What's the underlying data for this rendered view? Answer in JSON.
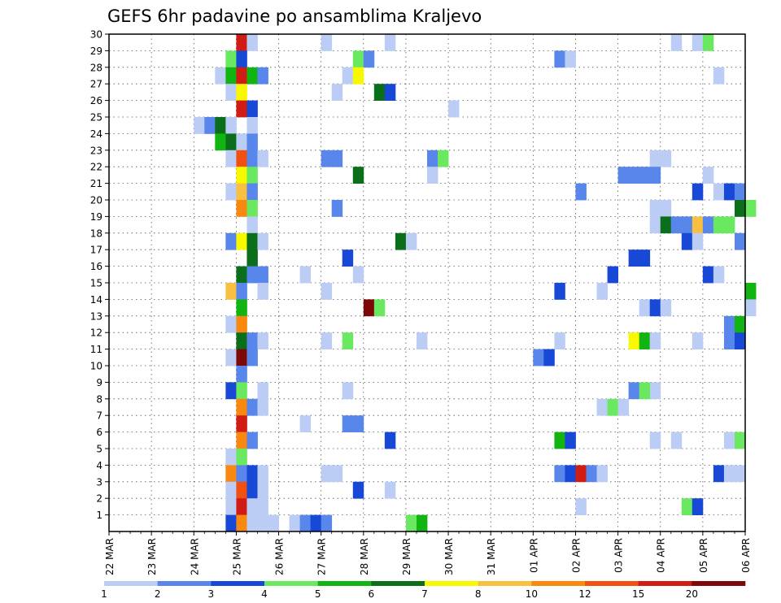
{
  "chart_data": {
    "type": "heatmap",
    "title": "GEFS 6hr padavine po ansamblima Kraljevo",
    "x_tick_labels": [
      "22 MAR",
      "23 MAR",
      "24 MAR",
      "25 MAR",
      "26 MAR",
      "27 MAR",
      "28 MAR",
      "29 MAR",
      "30 MAR",
      "31 MAR",
      "01 APR",
      "02 APR",
      "03 APR",
      "04 APR",
      "05 APR",
      "06 APR"
    ],
    "y_tick_labels": [
      "1",
      "2",
      "3",
      "4",
      "5",
      "6",
      "7",
      "8",
      "9",
      "10",
      "11",
      "12",
      "13",
      "14",
      "15",
      "16",
      "17",
      "18",
      "19",
      "20",
      "21",
      "22",
      "23",
      "24",
      "25",
      "26",
      "27",
      "28",
      "29",
      "30"
    ],
    "ylim": [
      0,
      30
    ],
    "steps_per_day": 4,
    "grid": true,
    "legend": {
      "placement": "bottom",
      "bin_labels": [
        "1",
        "2",
        "3",
        "4",
        "5",
        "6",
        "7",
        "8",
        "10",
        "12",
        "15",
        "20"
      ],
      "colors": [
        "#bccdf5",
        "#5886ea",
        "#1848d6",
        "#6ae860",
        "#12b412",
        "#0a6e1a",
        "#f8f800",
        "#f8c040",
        "#f88810",
        "#f05010",
        "#d01c14",
        "#7c0808"
      ]
    },
    "cells": [
      [
        30,
        12,
        11
      ],
      [
        30,
        13,
        1
      ],
      [
        30,
        20,
        1
      ],
      [
        30,
        26,
        1
      ],
      [
        30,
        53,
        1
      ],
      [
        30,
        55,
        1
      ],
      [
        30,
        56,
        4
      ],
      [
        29,
        11,
        4
      ],
      [
        29,
        12,
        3
      ],
      [
        29,
        23,
        4
      ],
      [
        29,
        24,
        2
      ],
      [
        29,
        42,
        2
      ],
      [
        29,
        43,
        1
      ],
      [
        28,
        10,
        1
      ],
      [
        28,
        11,
        5
      ],
      [
        28,
        12,
        11
      ],
      [
        28,
        13,
        5
      ],
      [
        28,
        14,
        2
      ],
      [
        28,
        22,
        1
      ],
      [
        28,
        23,
        7
      ],
      [
        28,
        57,
        1
      ],
      [
        27,
        11,
        1
      ],
      [
        27,
        12,
        7
      ],
      [
        27,
        21,
        1
      ],
      [
        27,
        25,
        6
      ],
      [
        27,
        26,
        3
      ],
      [
        26,
        12,
        11
      ],
      [
        26,
        13,
        3
      ],
      [
        26,
        32,
        1
      ],
      [
        25,
        8,
        1
      ],
      [
        25,
        9,
        2
      ],
      [
        25,
        10,
        6
      ],
      [
        25,
        11,
        1
      ],
      [
        25,
        13,
        1
      ],
      [
        24,
        10,
        5
      ],
      [
        24,
        11,
        6
      ],
      [
        24,
        12,
        1
      ],
      [
        24,
        13,
        2
      ],
      [
        23,
        11,
        1
      ],
      [
        23,
        12,
        10
      ],
      [
        23,
        13,
        2
      ],
      [
        23,
        14,
        1
      ],
      [
        23,
        20,
        2
      ],
      [
        23,
        21,
        2
      ],
      [
        23,
        30,
        2
      ],
      [
        23,
        31,
        4
      ],
      [
        23,
        51,
        1
      ],
      [
        23,
        52,
        1
      ],
      [
        22,
        12,
        7
      ],
      [
        22,
        13,
        4
      ],
      [
        22,
        23,
        6
      ],
      [
        22,
        30,
        1
      ],
      [
        22,
        48,
        2
      ],
      [
        22,
        49,
        2
      ],
      [
        22,
        50,
        2
      ],
      [
        22,
        51,
        2
      ],
      [
        22,
        56,
        1
      ],
      [
        21,
        11,
        1
      ],
      [
        21,
        12,
        8
      ],
      [
        21,
        13,
        2
      ],
      [
        21,
        44,
        2
      ],
      [
        21,
        55,
        3
      ],
      [
        21,
        57,
        1
      ],
      [
        21,
        58,
        3
      ],
      [
        21,
        59,
        2
      ],
      [
        20,
        12,
        9
      ],
      [
        20,
        13,
        4
      ],
      [
        20,
        21,
        2
      ],
      [
        20,
        51,
        1
      ],
      [
        20,
        52,
        1
      ],
      [
        20,
        59,
        6
      ],
      [
        20,
        60,
        4
      ],
      [
        19,
        13,
        1
      ],
      [
        19,
        51,
        1
      ],
      [
        19,
        52,
        6
      ],
      [
        19,
        53,
        2
      ],
      [
        19,
        54,
        2
      ],
      [
        19,
        55,
        8
      ],
      [
        19,
        56,
        2
      ],
      [
        19,
        57,
        4
      ],
      [
        19,
        58,
        4
      ],
      [
        18,
        11,
        2
      ],
      [
        18,
        12,
        7
      ],
      [
        18,
        13,
        6
      ],
      [
        18,
        14,
        1
      ],
      [
        18,
        27,
        6
      ],
      [
        18,
        28,
        1
      ],
      [
        18,
        54,
        3
      ],
      [
        18,
        55,
        1
      ],
      [
        18,
        59,
        2
      ],
      [
        17,
        13,
        6
      ],
      [
        17,
        22,
        3
      ],
      [
        17,
        49,
        3
      ],
      [
        17,
        50,
        3
      ],
      [
        16,
        12,
        6
      ],
      [
        16,
        13,
        2
      ],
      [
        16,
        14,
        2
      ],
      [
        16,
        18,
        1
      ],
      [
        16,
        23,
        1
      ],
      [
        16,
        47,
        3
      ],
      [
        16,
        56,
        3
      ],
      [
        16,
        57,
        1
      ],
      [
        15,
        11,
        8
      ],
      [
        15,
        12,
        2
      ],
      [
        15,
        14,
        1
      ],
      [
        15,
        20,
        1
      ],
      [
        15,
        42,
        3
      ],
      [
        15,
        46,
        1
      ],
      [
        15,
        60,
        5
      ],
      [
        14,
        12,
        5
      ],
      [
        14,
        24,
        12
      ],
      [
        14,
        25,
        4
      ],
      [
        14,
        50,
        1
      ],
      [
        14,
        51,
        3
      ],
      [
        14,
        52,
        1
      ],
      [
        14,
        60,
        1
      ],
      [
        13,
        11,
        1
      ],
      [
        13,
        12,
        9
      ],
      [
        13,
        58,
        2
      ],
      [
        13,
        59,
        5
      ],
      [
        12,
        12,
        6
      ],
      [
        12,
        13,
        2
      ],
      [
        12,
        14,
        1
      ],
      [
        12,
        20,
        1
      ],
      [
        12,
        22,
        4
      ],
      [
        12,
        29,
        1
      ],
      [
        12,
        42,
        1
      ],
      [
        12,
        49,
        7
      ],
      [
        12,
        50,
        5
      ],
      [
        12,
        51,
        1
      ],
      [
        12,
        55,
        1
      ],
      [
        12,
        58,
        2
      ],
      [
        12,
        59,
        3
      ],
      [
        11,
        11,
        1
      ],
      [
        11,
        12,
        12
      ],
      [
        11,
        13,
        2
      ],
      [
        11,
        40,
        2
      ],
      [
        11,
        41,
        3
      ],
      [
        10,
        12,
        2
      ],
      [
        9,
        11,
        3
      ],
      [
        9,
        12,
        4
      ],
      [
        9,
        14,
        1
      ],
      [
        9,
        22,
        1
      ],
      [
        9,
        51,
        1
      ],
      [
        9,
        49,
        2
      ],
      [
        9,
        50,
        4
      ],
      [
        8,
        12,
        9
      ],
      [
        8,
        13,
        2
      ],
      [
        8,
        14,
        1
      ],
      [
        8,
        46,
        1
      ],
      [
        8,
        47,
        4
      ],
      [
        8,
        48,
        1
      ],
      [
        7,
        12,
        11
      ],
      [
        7,
        18,
        1
      ],
      [
        7,
        22,
        2
      ],
      [
        7,
        23,
        2
      ],
      [
        6,
        12,
        9
      ],
      [
        6,
        13,
        2
      ],
      [
        6,
        26,
        3
      ],
      [
        6,
        42,
        5
      ],
      [
        6,
        43,
        3
      ],
      [
        6,
        51,
        1
      ],
      [
        6,
        53,
        1
      ],
      [
        6,
        58,
        1
      ],
      [
        6,
        59,
        4
      ],
      [
        5,
        11,
        1
      ],
      [
        5,
        12,
        4
      ],
      [
        4,
        11,
        9
      ],
      [
        4,
        12,
        2
      ],
      [
        4,
        13,
        3
      ],
      [
        4,
        14,
        1
      ],
      [
        4,
        20,
        1
      ],
      [
        4,
        21,
        1
      ],
      [
        4,
        42,
        2
      ],
      [
        4,
        43,
        3
      ],
      [
        4,
        44,
        11
      ],
      [
        4,
        45,
        2
      ],
      [
        4,
        46,
        1
      ],
      [
        4,
        57,
        3
      ],
      [
        4,
        58,
        1
      ],
      [
        4,
        59,
        1
      ],
      [
        3,
        11,
        1
      ],
      [
        3,
        12,
        10
      ],
      [
        3,
        13,
        3
      ],
      [
        3,
        14,
        1
      ],
      [
        3,
        23,
        3
      ],
      [
        3,
        26,
        1
      ],
      [
        2,
        11,
        1
      ],
      [
        2,
        12,
        11
      ],
      [
        2,
        13,
        1
      ],
      [
        2,
        14,
        1
      ],
      [
        2,
        44,
        1
      ],
      [
        2,
        54,
        4
      ],
      [
        2,
        55,
        3
      ],
      [
        1,
        11,
        3
      ],
      [
        1,
        12,
        9
      ],
      [
        1,
        13,
        1
      ],
      [
        1,
        14,
        1
      ],
      [
        1,
        15,
        1
      ],
      [
        1,
        17,
        1
      ],
      [
        1,
        18,
        2
      ],
      [
        1,
        19,
        3
      ],
      [
        1,
        20,
        2
      ],
      [
        1,
        28,
        4
      ],
      [
        1,
        29,
        5
      ]
    ]
  }
}
